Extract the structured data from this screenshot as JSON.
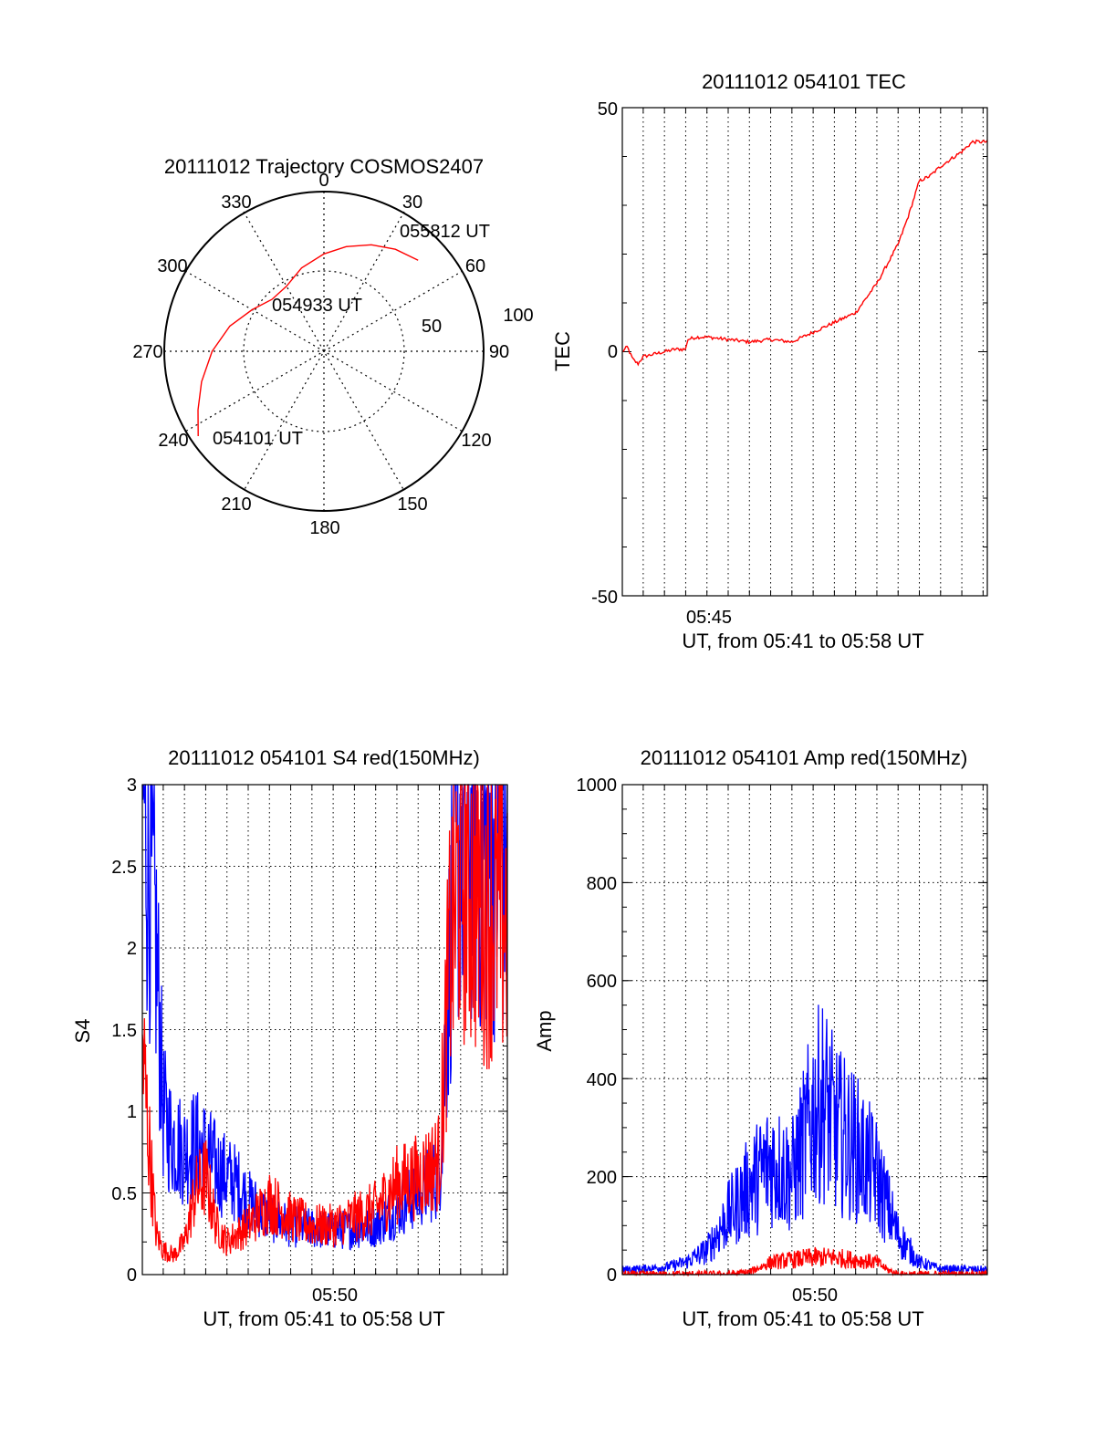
{
  "chart_data": [
    {
      "type": "polar",
      "title": "20111012 Trajectory COSMOS2407",
      "azimuth_labels": [
        "0",
        "30",
        "60",
        "90",
        "120",
        "150",
        "180",
        "210",
        "240",
        "270",
        "300",
        "330"
      ],
      "radial_ticks": [
        "50",
        "100"
      ],
      "elevation_range": [
        0,
        100
      ],
      "trajectory_color": "#ff0000",
      "trajectory": [
        {
          "az": 236,
          "r": 95
        },
        {
          "az": 245,
          "r": 87
        },
        {
          "az": 256,
          "r": 79
        },
        {
          "az": 270,
          "r": 70
        },
        {
          "az": 285,
          "r": 61
        },
        {
          "az": 300,
          "r": 52
        },
        {
          "az": 315,
          "r": 46
        },
        {
          "az": 330,
          "r": 47
        },
        {
          "az": 345,
          "r": 54
        },
        {
          "az": 0,
          "r": 61
        },
        {
          "az": 12,
          "r": 67
        },
        {
          "az": 24,
          "r": 73
        },
        {
          "az": 35,
          "r": 78
        },
        {
          "az": 46,
          "r": 82
        }
      ],
      "annotations": [
        "055812 UT",
        "054933 UT",
        "054101 UT"
      ]
    },
    {
      "type": "line",
      "title": "20111012 054101 TEC",
      "xlabel": "UT, from 05:41 to 05:58 UT",
      "ylabel": "TEC",
      "xlim": [
        "05:41:01",
        "05:58:12"
      ],
      "ylim": [
        -50,
        50
      ],
      "yticks": [
        "50",
        "0",
        "-50"
      ],
      "xticks": [
        "05:45"
      ],
      "grid": "dotted vertical",
      "series": [
        {
          "color": "#ff0000",
          "points": [
            [
              "05:41:01",
              0
            ],
            [
              "05:41:15",
              1
            ],
            [
              "05:41:30",
              -1.5
            ],
            [
              "05:41:45",
              -2.5
            ],
            [
              "05:42:00",
              -1
            ],
            [
              "05:42:30",
              -0.5
            ],
            [
              "05:43:00",
              0
            ],
            [
              "05:43:30",
              0.5
            ],
            [
              "05:44:00",
              0.5
            ],
            [
              "05:44:05",
              2.5
            ],
            [
              "05:44:30",
              3
            ],
            [
              "05:45:00",
              3
            ],
            [
              "05:46:00",
              2.5
            ],
            [
              "05:47:00",
              2
            ],
            [
              "05:48:00",
              2.5
            ],
            [
              "05:49:00",
              2
            ],
            [
              "05:50:00",
              4
            ],
            [
              "05:51:00",
              6
            ],
            [
              "05:52:00",
              8
            ],
            [
              "05:53:00",
              14
            ],
            [
              "05:53:30",
              18
            ],
            [
              "05:54:00",
              22
            ],
            [
              "05:54:30",
              28
            ],
            [
              "05:55:00",
              35
            ],
            [
              "05:55:30",
              36
            ],
            [
              "05:56:00",
              38
            ],
            [
              "05:57:00",
              41
            ],
            [
              "05:57:30",
              43
            ],
            [
              "05:58:12",
              43
            ]
          ]
        }
      ]
    },
    {
      "type": "line",
      "title": "20111012 054101 S4 red(150MHz)",
      "xlabel": "UT, from 05:41 to 05:58 UT",
      "ylabel": "S4",
      "xlim": [
        "05:41:01",
        "05:58:12"
      ],
      "ylim": [
        0,
        3
      ],
      "yticks": [
        "0",
        "0.5",
        "1",
        "1.5",
        "2",
        "2.5",
        "3"
      ],
      "xticks": [
        "05:50"
      ],
      "grid": "dotted",
      "series": [
        {
          "color": "#0000ff",
          "points": [
            [
              "05:41:01",
              3
            ],
            [
              "05:41:20",
              2.6
            ],
            [
              "05:41:40",
              2.0
            ],
            [
              "05:42:00",
              1.0
            ],
            [
              "05:42:20",
              0.85
            ],
            [
              "05:42:40",
              0.8
            ],
            [
              "05:43:00",
              0.75
            ],
            [
              "05:43:30",
              0.8
            ],
            [
              "05:44:00",
              0.75
            ],
            [
              "05:44:30",
              0.65
            ],
            [
              "05:45:00",
              0.6
            ],
            [
              "05:45:30",
              0.55
            ],
            [
              "05:46:00",
              0.45
            ],
            [
              "05:46:30",
              0.4
            ],
            [
              "05:47:00",
              0.35
            ],
            [
              "05:48:00",
              0.3
            ],
            [
              "05:49:00",
              0.28
            ],
            [
              "05:50:00",
              0.27
            ],
            [
              "05:51:00",
              0.28
            ],
            [
              "05:52:00",
              0.3
            ],
            [
              "05:53:00",
              0.4
            ],
            [
              "05:54:00",
              0.5
            ],
            [
              "05:55:00",
              0.6
            ],
            [
              "05:55:20",
              1.5
            ],
            [
              "05:55:40",
              2.5
            ],
            [
              "05:56:00",
              2.7
            ],
            [
              "05:57:00",
              2.6
            ],
            [
              "05:58:12",
              2.5
            ]
          ]
        },
        {
          "color": "#ff0000",
          "points": [
            [
              "05:41:01",
              1.4
            ],
            [
              "05:41:20",
              0.8
            ],
            [
              "05:41:40",
              0.25
            ],
            [
              "05:42:00",
              0.15
            ],
            [
              "05:42:30",
              0.12
            ],
            [
              "05:43:00",
              0.2
            ],
            [
              "05:43:30",
              0.5
            ],
            [
              "05:44:00",
              0.6
            ],
            [
              "05:44:30",
              0.3
            ],
            [
              "05:45:00",
              0.2
            ],
            [
              "05:45:30",
              0.25
            ],
            [
              "05:46:00",
              0.3
            ],
            [
              "05:47:00",
              0.45
            ],
            [
              "05:48:00",
              0.35
            ],
            [
              "05:49:00",
              0.3
            ],
            [
              "05:50:00",
              0.3
            ],
            [
              "05:51:00",
              0.35
            ],
            [
              "05:52:00",
              0.4
            ],
            [
              "05:53:00",
              0.55
            ],
            [
              "05:54:00",
              0.6
            ],
            [
              "05:55:00",
              0.7
            ],
            [
              "05:55:30",
              2.0
            ],
            [
              "05:56:00",
              2.5
            ],
            [
              "05:57:00",
              2.3
            ],
            [
              "05:58:12",
              2.2
            ]
          ]
        }
      ]
    },
    {
      "type": "line",
      "title": "20111012 054101 Amp red(150MHz)",
      "xlabel": "UT, from 05:41 to 05:58 UT",
      "ylabel": "Amp",
      "xlim": [
        "05:41:01",
        "05:58:12"
      ],
      "ylim": [
        0,
        1000
      ],
      "yticks": [
        "0",
        "200",
        "400",
        "600",
        "800",
        "1000"
      ],
      "xticks": [
        "05:50"
      ],
      "grid": "dotted",
      "series": [
        {
          "color": "#0000ff",
          "points": [
            [
              "05:41:01",
              10
            ],
            [
              "05:43:00",
              15
            ],
            [
              "05:44:00",
              25
            ],
            [
              "05:45:00",
              50
            ],
            [
              "05:46:00",
              120
            ],
            [
              "05:47:00",
              180
            ],
            [
              "05:48:00",
              230
            ],
            [
              "05:49:00",
              200
            ],
            [
              "05:49:30",
              260
            ],
            [
              "05:50:00",
              330
            ],
            [
              "05:50:30",
              360
            ],
            [
              "05:51:00",
              300
            ],
            [
              "05:52:00",
              260
            ],
            [
              "05:53:00",
              200
            ],
            [
              "05:54:00",
              80
            ],
            [
              "05:55:00",
              25
            ],
            [
              "05:56:00",
              12
            ],
            [
              "05:58:12",
              10
            ]
          ]
        },
        {
          "color": "#ff0000",
          "points": [
            [
              "05:41:01",
              0
            ],
            [
              "05:46:00",
              0
            ],
            [
              "05:47:00",
              5
            ],
            [
              "05:48:00",
              25
            ],
            [
              "05:49:00",
              30
            ],
            [
              "05:50:00",
              35
            ],
            [
              "05:51:00",
              35
            ],
            [
              "05:52:00",
              30
            ],
            [
              "05:53:00",
              25
            ],
            [
              "05:53:30",
              10
            ],
            [
              "05:54:00",
              0
            ],
            [
              "05:58:12",
              0
            ]
          ]
        }
      ]
    }
  ]
}
